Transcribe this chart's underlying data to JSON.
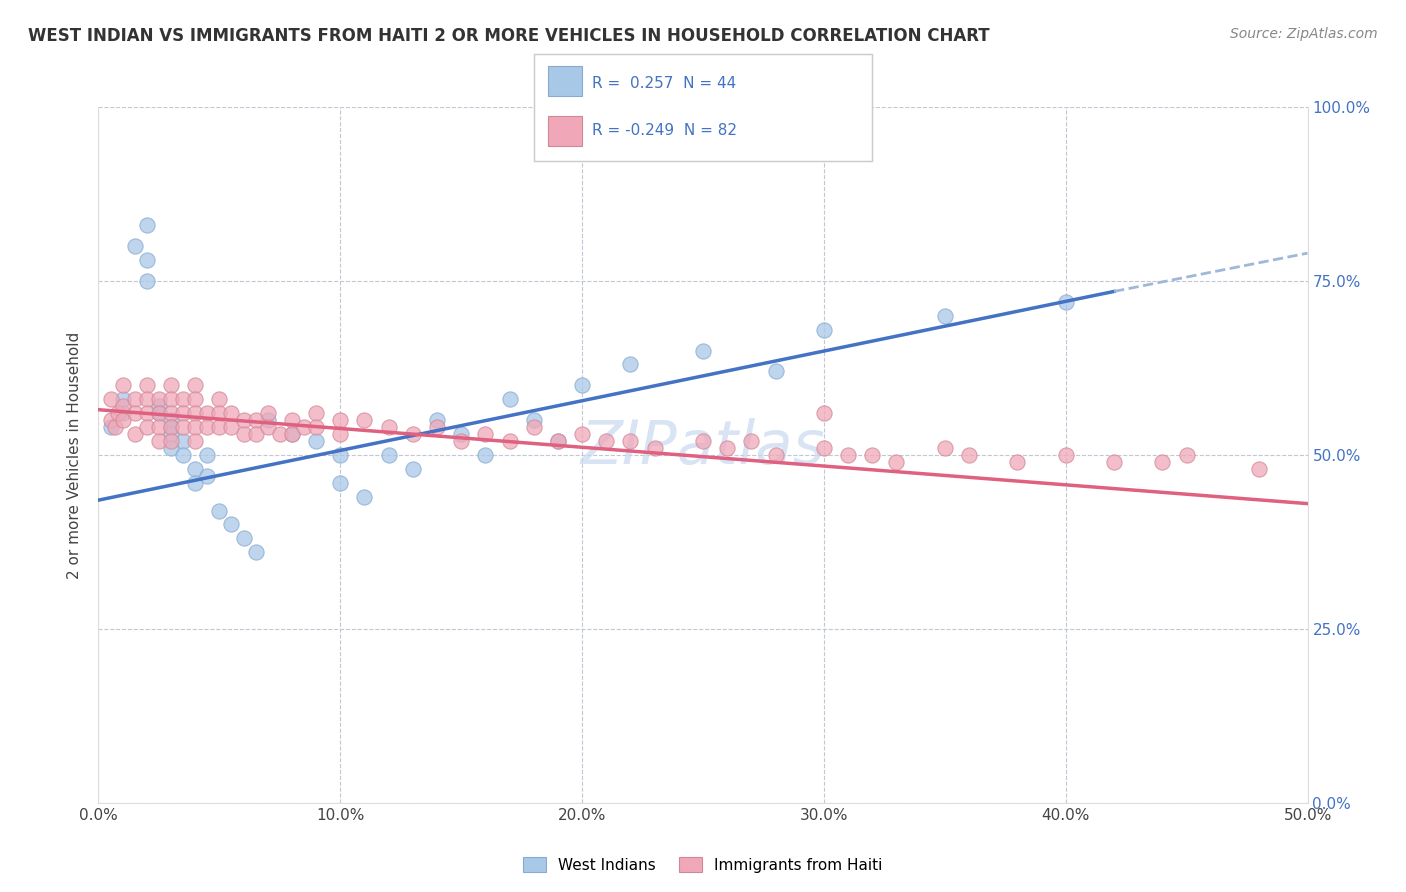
{
  "title": "WEST INDIAN VS IMMIGRANTS FROM HAITI 2 OR MORE VEHICLES IN HOUSEHOLD CORRELATION CHART",
  "source": "Source: ZipAtlas.com",
  "ylabel": "2 or more Vehicles in Household",
  "xlim": [
    0.0,
    0.5
  ],
  "ylim": [
    0.0,
    1.0
  ],
  "blue_color": "#a8c8e8",
  "pink_color": "#f0a8b8",
  "trend_blue": "#4472c4",
  "trend_pink": "#e06080",
  "trend_blue_dash": "#a0b8d8",
  "watermark_color": "#c8d8f0",
  "r_blue": 0.257,
  "n_blue": 44,
  "r_pink": -0.249,
  "n_pink": 82,
  "west_indians_x": [
    0.005,
    0.01,
    0.01,
    0.015,
    0.02,
    0.02,
    0.02,
    0.025,
    0.025,
    0.03,
    0.03,
    0.03,
    0.03,
    0.035,
    0.035,
    0.04,
    0.04,
    0.045,
    0.045,
    0.05,
    0.055,
    0.06,
    0.065,
    0.07,
    0.08,
    0.09,
    0.1,
    0.1,
    0.11,
    0.12,
    0.13,
    0.14,
    0.15,
    0.16,
    0.17,
    0.18,
    0.19,
    0.2,
    0.22,
    0.25,
    0.28,
    0.3,
    0.35,
    0.4
  ],
  "west_indians_y": [
    0.54,
    0.58,
    0.56,
    0.8,
    0.83,
    0.78,
    0.75,
    0.57,
    0.56,
    0.55,
    0.54,
    0.53,
    0.51,
    0.52,
    0.5,
    0.48,
    0.46,
    0.5,
    0.47,
    0.42,
    0.4,
    0.38,
    0.36,
    0.55,
    0.53,
    0.52,
    0.5,
    0.46,
    0.44,
    0.5,
    0.48,
    0.55,
    0.53,
    0.5,
    0.58,
    0.55,
    0.52,
    0.6,
    0.63,
    0.65,
    0.62,
    0.68,
    0.7,
    0.72
  ],
  "haiti_x": [
    0.005,
    0.005,
    0.007,
    0.008,
    0.01,
    0.01,
    0.01,
    0.015,
    0.015,
    0.015,
    0.02,
    0.02,
    0.02,
    0.02,
    0.025,
    0.025,
    0.025,
    0.025,
    0.03,
    0.03,
    0.03,
    0.03,
    0.03,
    0.035,
    0.035,
    0.035,
    0.04,
    0.04,
    0.04,
    0.04,
    0.04,
    0.045,
    0.045,
    0.05,
    0.05,
    0.05,
    0.055,
    0.055,
    0.06,
    0.06,
    0.065,
    0.065,
    0.07,
    0.07,
    0.075,
    0.08,
    0.08,
    0.085,
    0.09,
    0.09,
    0.1,
    0.1,
    0.11,
    0.12,
    0.13,
    0.14,
    0.15,
    0.16,
    0.17,
    0.18,
    0.19,
    0.2,
    0.21,
    0.22,
    0.23,
    0.25,
    0.26,
    0.27,
    0.28,
    0.3,
    0.31,
    0.32,
    0.33,
    0.35,
    0.36,
    0.38,
    0.4,
    0.42,
    0.44,
    0.48,
    0.3,
    0.45
  ],
  "haiti_y": [
    0.58,
    0.55,
    0.54,
    0.56,
    0.6,
    0.57,
    0.55,
    0.58,
    0.56,
    0.53,
    0.6,
    0.58,
    0.56,
    0.54,
    0.58,
    0.56,
    0.54,
    0.52,
    0.6,
    0.58,
    0.56,
    0.54,
    0.52,
    0.58,
    0.56,
    0.54,
    0.6,
    0.58,
    0.56,
    0.54,
    0.52,
    0.56,
    0.54,
    0.58,
    0.56,
    0.54,
    0.56,
    0.54,
    0.55,
    0.53,
    0.55,
    0.53,
    0.56,
    0.54,
    0.53,
    0.55,
    0.53,
    0.54,
    0.56,
    0.54,
    0.55,
    0.53,
    0.55,
    0.54,
    0.53,
    0.54,
    0.52,
    0.53,
    0.52,
    0.54,
    0.52,
    0.53,
    0.52,
    0.52,
    0.51,
    0.52,
    0.51,
    0.52,
    0.5,
    0.51,
    0.5,
    0.5,
    0.49,
    0.51,
    0.5,
    0.49,
    0.5,
    0.49,
    0.49,
    0.48,
    0.56,
    0.5
  ],
  "point_size": 120
}
